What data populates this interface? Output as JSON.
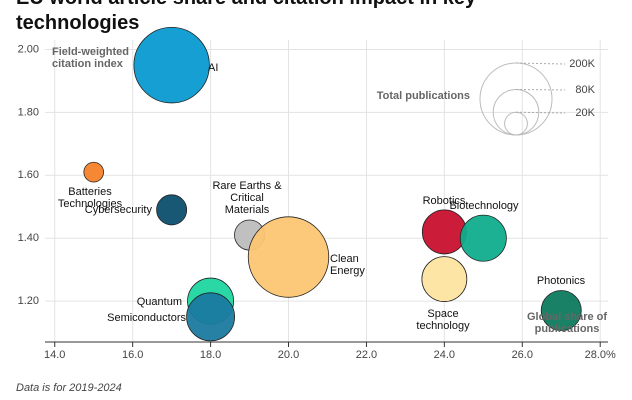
{
  "chart_data": {
    "type": "bubble",
    "title": "EU world article share and citation impact in key technologies",
    "x_label": "Global share of publications",
    "y_label": "Field-weighted citation index",
    "xlim": [
      13.75,
      28.2
    ],
    "ylim": [
      1.07,
      2.03
    ],
    "xticks": [
      {
        "value": 14,
        "label": "14.0"
      },
      {
        "value": 16,
        "label": "16.0"
      },
      {
        "value": 18,
        "label": "18.0"
      },
      {
        "value": 20,
        "label": "20.0"
      },
      {
        "value": 22,
        "label": "22.0"
      },
      {
        "value": 24,
        "label": "24.0"
      },
      {
        "value": 26,
        "label": "26.0"
      },
      {
        "value": 28,
        "label": "28.0%"
      }
    ],
    "yticks": [
      {
        "value": 1.2,
        "label": "1.20"
      },
      {
        "value": 1.4,
        "label": "1.40"
      },
      {
        "value": 1.6,
        "label": "1.60"
      },
      {
        "value": 1.8,
        "label": "1.80"
      },
      {
        "value": 2.0,
        "label": "2.00"
      }
    ],
    "grid": true,
    "points": [
      {
        "name": "AI",
        "color": "#0a9ad0",
        "x": 17.0,
        "y": 1.95,
        "size": 220000
      },
      {
        "name": "Batteries Technologies",
        "color": "#f5822a",
        "x": 15.0,
        "y": 1.61,
        "size": 15000
      },
      {
        "name": "Cybersecurity",
        "color": "#0d4f6e",
        "x": 17.0,
        "y": 1.49,
        "size": 35000
      },
      {
        "name": "Rare Earths & Critical Materials",
        "color": "#bdbdbd",
        "x": 19.0,
        "y": 1.41,
        "size": 35000
      },
      {
        "name": "Clean Energy",
        "color": "#fcc572",
        "x": 20.0,
        "y": 1.34,
        "size": 250000
      },
      {
        "name": "Quantum",
        "color": "#1fd6a0",
        "x": 18.0,
        "y": 1.2,
        "size": 82000
      },
      {
        "name": "Semiconductors",
        "color": "#1a7aa0",
        "x": 18.0,
        "y": 1.15,
        "size": 89000
      },
      {
        "name": "Robotics",
        "color": "#c8102e",
        "x": 24.0,
        "y": 1.42,
        "size": 75000
      },
      {
        "name": "Biotechnology",
        "color": "#10ad8c",
        "x": 25.0,
        "y": 1.4,
        "size": 82000
      },
      {
        "name": "Space technology",
        "color": "#fde4a0",
        "x": 24.0,
        "y": 1.27,
        "size": 78000
      },
      {
        "name": "Photonics",
        "color": "#0d7a5d",
        "x": 27.0,
        "y": 1.17,
        "size": 62000
      }
    ],
    "size_legend": {
      "title": "Total publications",
      "values": [
        200000,
        80000,
        20000
      ],
      "value_labels": [
        "200K",
        "80K",
        "20K"
      ]
    },
    "note": "Data is for 2019-2024"
  }
}
